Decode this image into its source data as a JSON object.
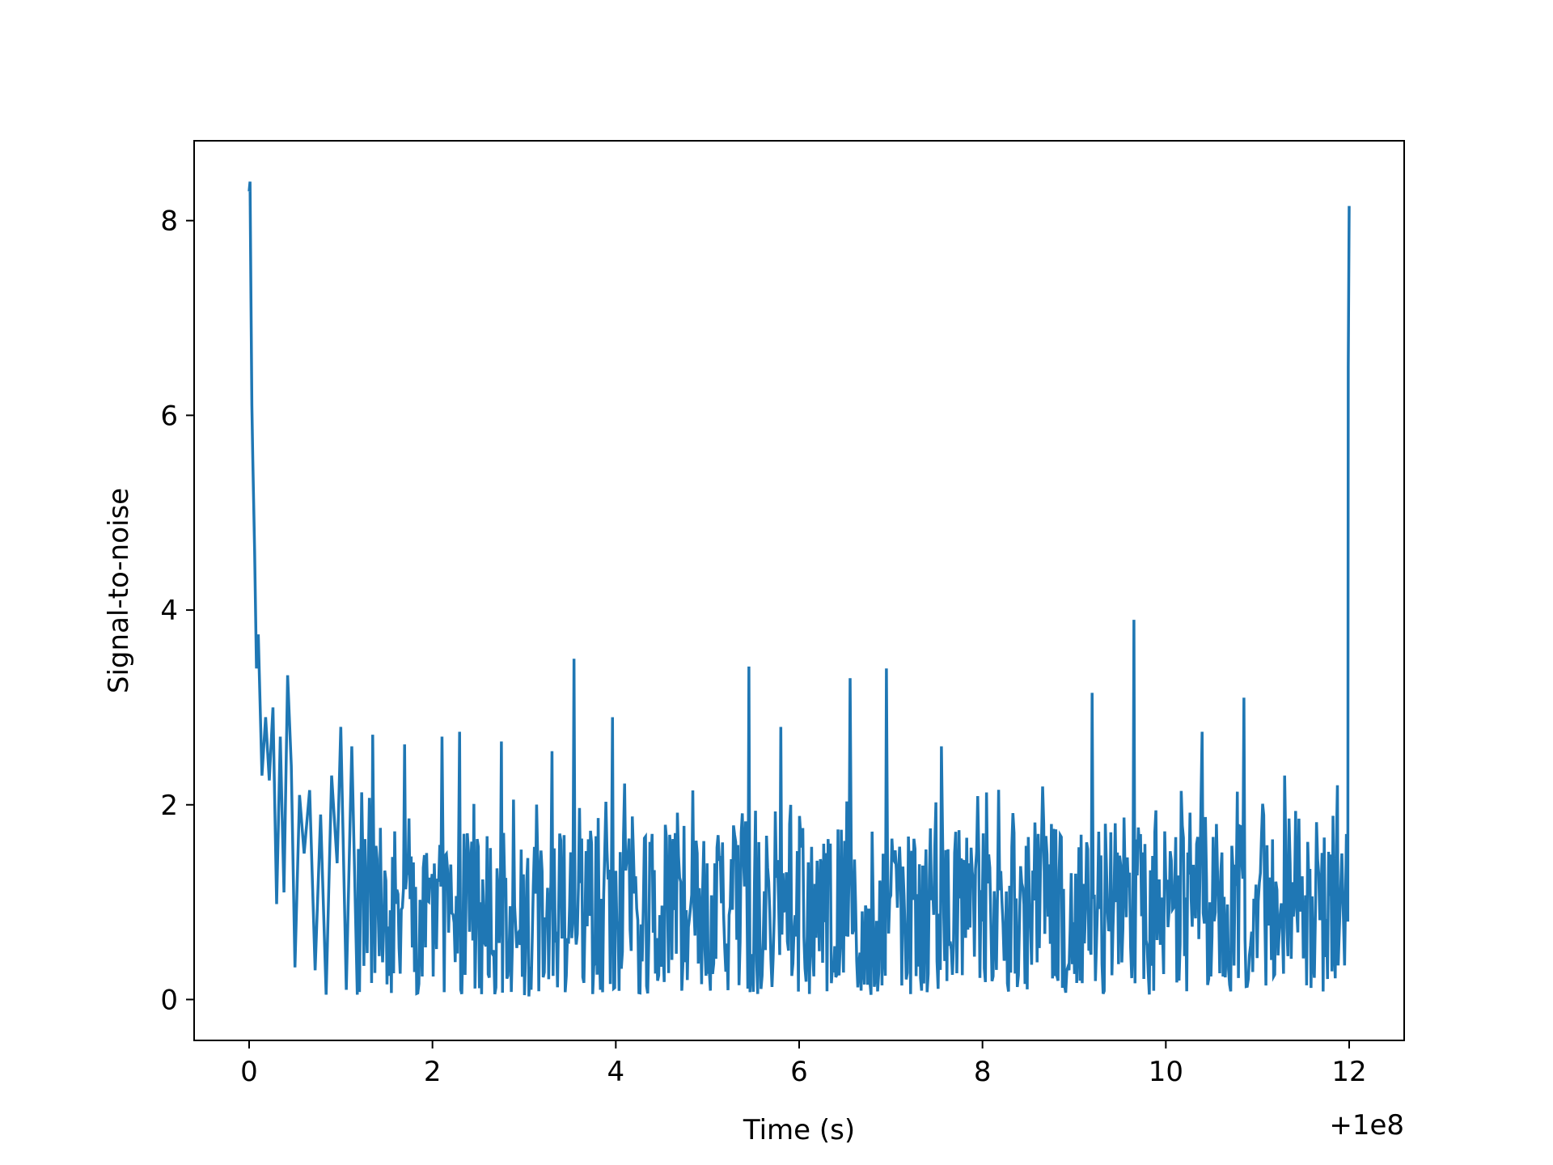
{
  "chart_data": {
    "type": "line",
    "title": "",
    "xlabel": "Time (s)",
    "ylabel": "Signal-to-noise",
    "x_offset_label": "+1e8",
    "xlim": [
      -0.6,
      12.6
    ],
    "ylim": [
      -0.42,
      8.82
    ],
    "xticks": [
      0,
      2,
      4,
      6,
      8,
      10,
      12
    ],
    "xtick_labels": [
      "0",
      "2",
      "4",
      "6",
      "8",
      "10",
      "12"
    ],
    "yticks": [
      0,
      2,
      4,
      6,
      8
    ],
    "ytick_labels": [
      "0",
      "2",
      "4",
      "6",
      "8"
    ],
    "grid": false,
    "legend": "none",
    "series": [
      {
        "color": "#1f77b4",
        "x_start": 0.0,
        "x_end": 12.0,
        "samples_note": "uniformly spaced samples",
        "anchors": [
          [
            0.0,
            8.3
          ],
          [
            0.01,
            8.4
          ],
          [
            0.02,
            7.2
          ],
          [
            0.03,
            6.1
          ],
          [
            0.04,
            5.55
          ],
          [
            0.06,
            4.6
          ],
          [
            0.08,
            3.4
          ],
          [
            0.1,
            3.75
          ],
          [
            0.14,
            2.3
          ],
          [
            0.18,
            2.9
          ],
          [
            0.22,
            2.25
          ],
          [
            0.26,
            3.0
          ],
          [
            0.3,
            0.98
          ],
          [
            0.34,
            2.7
          ],
          [
            0.38,
            1.1
          ],
          [
            0.42,
            3.33
          ],
          [
            0.46,
            2.4
          ],
          [
            0.5,
            0.33
          ],
          [
            0.55,
            2.1
          ],
          [
            0.6,
            1.5
          ],
          [
            0.66,
            2.15
          ],
          [
            0.72,
            0.3
          ],
          [
            0.78,
            1.9
          ],
          [
            0.84,
            0.05
          ],
          [
            0.9,
            2.3
          ],
          [
            0.96,
            1.4
          ],
          [
            1.0,
            2.8
          ],
          [
            1.06,
            0.1
          ],
          [
            1.12,
            2.6
          ],
          [
            1.18,
            0.05
          ]
        ],
        "spikes": [
          [
            1.35,
            2.72
          ],
          [
            1.7,
            2.62
          ],
          [
            2.1,
            2.7
          ],
          [
            2.3,
            2.75
          ],
          [
            2.75,
            2.65
          ],
          [
            3.3,
            2.55
          ],
          [
            3.55,
            3.5
          ],
          [
            3.97,
            2.9
          ],
          [
            5.45,
            3.42
          ],
          [
            5.8,
            2.8
          ],
          [
            6.55,
            3.3
          ],
          [
            6.95,
            3.4
          ],
          [
            7.55,
            2.6
          ],
          [
            9.2,
            3.15
          ],
          [
            9.65,
            3.9
          ],
          [
            10.4,
            2.75
          ],
          [
            10.85,
            3.1
          ],
          [
            11.3,
            2.3
          ],
          [
            11.9,
            2.2
          ]
        ],
        "end_anchors": [
          [
            11.88,
            0.35
          ],
          [
            11.92,
            1.5
          ],
          [
            11.95,
            0.35
          ],
          [
            11.97,
            1.7
          ],
          [
            11.985,
            0.8
          ],
          [
            11.99,
            6.5
          ],
          [
            12.0,
            8.15
          ]
        ]
      }
    ]
  }
}
